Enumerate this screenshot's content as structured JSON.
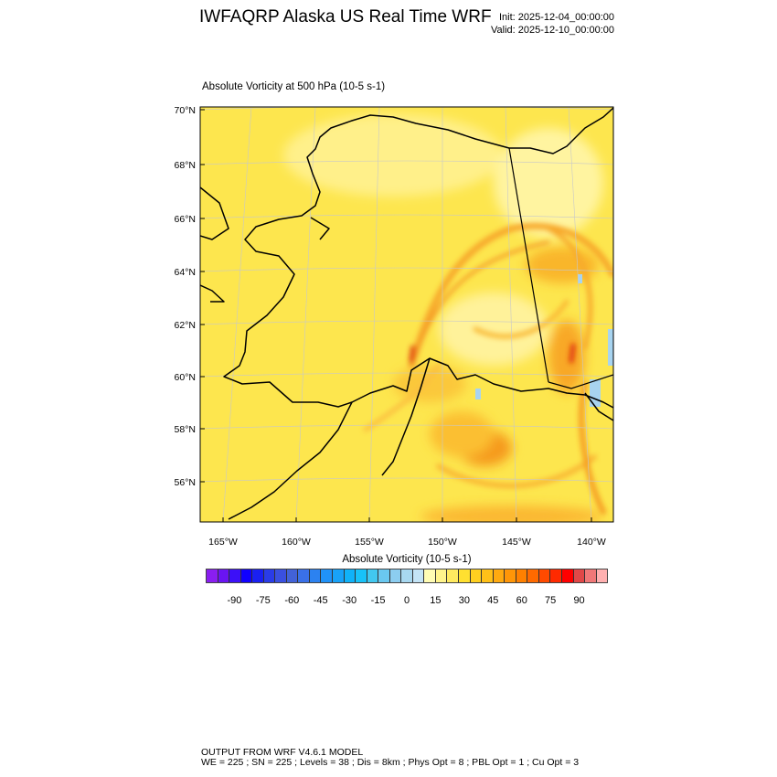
{
  "header": {
    "title": "IWFAQRP Alaska US Real Time WRF",
    "init": "Init: 2025-12-04_00:00:00",
    "valid": "Valid: 2025-12-10_00:00:00"
  },
  "plot": {
    "subtitle": "Absolute Vorticity at 500 hPa   (10-5 s-1)",
    "lat_labels": [
      "70°N",
      "68°N",
      "66°N",
      "64°N",
      "62°N",
      "60°N",
      "58°N",
      "56°N"
    ],
    "lon_labels": [
      "165°W",
      "160°W",
      "155°W",
      "150°W",
      "145°W",
      "140°W"
    ],
    "field_base_color": "#fde64e"
  },
  "colorbar": {
    "title": "Absolute Vorticity  (10-5 s-1)",
    "labels": [
      "-90",
      "-75",
      "-60",
      "-45",
      "-30",
      "-15",
      "0",
      "15",
      "30",
      "45",
      "60",
      "75",
      "90"
    ],
    "label_values": [
      -90,
      -75,
      -60,
      -45,
      -30,
      -15,
      0,
      15,
      30,
      45,
      60,
      75,
      90
    ],
    "range": [
      -105,
      105
    ],
    "colors": [
      "#8a1ef0",
      "#6a14f2",
      "#3c10f8",
      "#1000ff",
      "#1a20f2",
      "#2a3ce8",
      "#3a50e0",
      "#4262d8",
      "#3a70e8",
      "#2c82f0",
      "#2092f8",
      "#18a2f8",
      "#10b2f8",
      "#18c2f8",
      "#42c8f0",
      "#6ac8f0",
      "#8ccdf0",
      "#a8d8f0",
      "#c4e4f6",
      "#fffcb4",
      "#fff48c",
      "#ffea60",
      "#ffe030",
      "#ffd020",
      "#ffc018",
      "#ffaa10",
      "#ff9608",
      "#ff8000",
      "#ff6a00",
      "#ff4a00",
      "#ff2a00",
      "#ff0000",
      "#e80000",
      "#d00000",
      "#c81010"
    ],
    "colors_tail": [
      "#e04848",
      "#f07878",
      "#ffb0b0"
    ]
  },
  "footer": {
    "line1": "OUTPUT FROM WRF V4.6.1 MODEL",
    "line2": "WE = 225 ; SN = 225 ; Levels = 38 ; Dis = 8km ; Phys Opt = 8 ; PBL Opt = 1 ; Cu Opt = 3"
  }
}
